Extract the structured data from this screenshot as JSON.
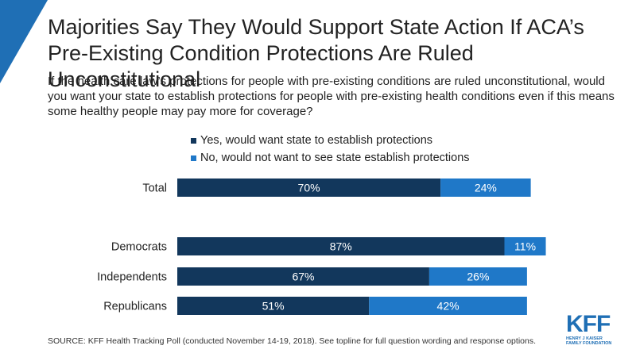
{
  "header": {
    "title": "Majorities Say They Would Support State Action If ACA’s Pre-Existing Condition Protections Are Ruled Unconstitutional",
    "subtitle": "If the health care law’s protections for people with pre-existing conditions are ruled unconstitutional, would you want your state to establish protections for people with pre-existing health conditions even if this means some healthy people may pay more for coverage?"
  },
  "source": "SOURCE: KFF Health Tracking Poll (conducted November 14-19, 2018). See topline for full question wording and response options.",
  "logo": {
    "main": "KFF",
    "line1": "HENRY J KAISER",
    "line2": "FAMILY FOUNDATION"
  },
  "colors": {
    "accent": "#1f6fb5",
    "dark": "#12375c",
    "light": "#1f78c8"
  },
  "chart_data": {
    "type": "bar",
    "orientation": "horizontal",
    "stacked": true,
    "categories": [
      "Total",
      "Democrats",
      "Independents",
      "Republicans"
    ],
    "series": [
      {
        "name": "Yes, would want state to establish protections",
        "values": [
          70,
          87,
          67,
          51
        ],
        "labels": [
          "70%",
          "87%",
          "67%",
          "51%"
        ],
        "color": "#12375c"
      },
      {
        "name": "No, would not want to see state establish protections",
        "values": [
          24,
          11,
          26,
          42
        ],
        "labels": [
          "24%",
          "11%",
          "26%",
          "42%"
        ],
        "color": "#1f78c8"
      }
    ],
    "legend_position": "top",
    "grid": false
  }
}
